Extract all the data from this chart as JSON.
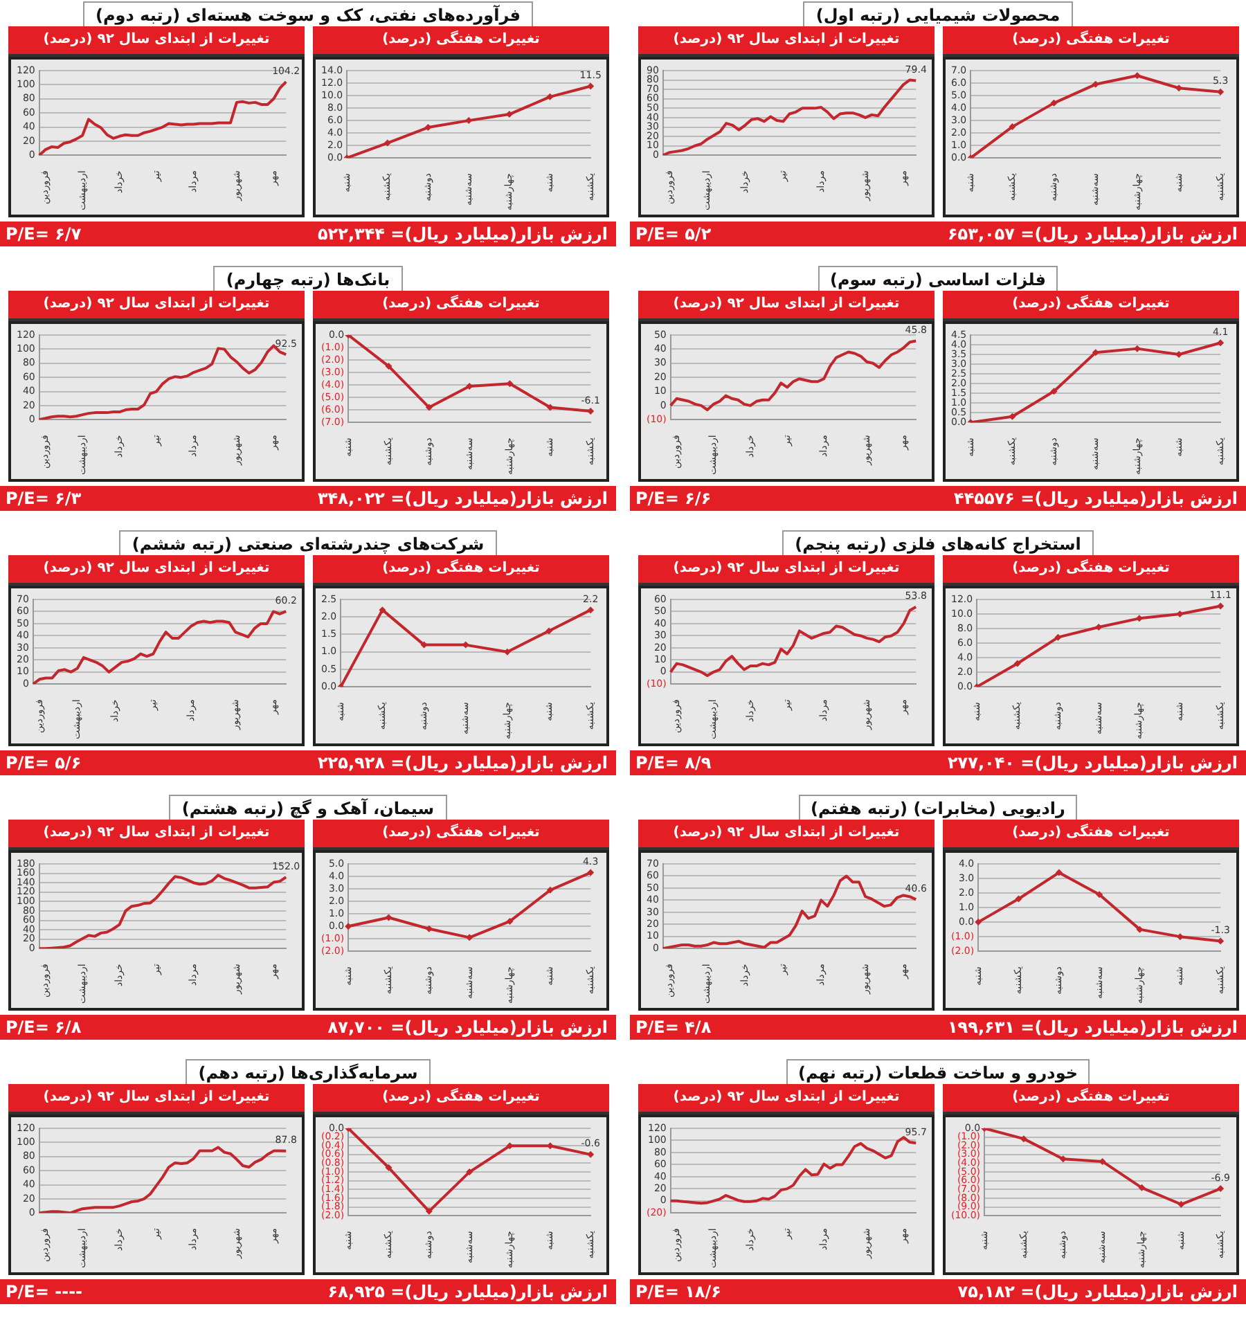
{
  "chart_data": [
    {
      "type": "line",
      "title": "تغییرات هفتگی (درصد)",
      "subtitle": "محصولات شیمیایی (رتبه اول)",
      "annotations": [
        "ارزش بازار(میلیارد ریال)= ۶۵۳,۰۵۷"
      ],
      "categories": [
        "شنبه",
        "یکشنبه",
        "دوشنبه",
        "سه‌شنبه",
        "چهارشنبه",
        "شنبه",
        "یکشنبه"
      ],
      "values": [
        0,
        2.5,
        4.4,
        5.9,
        6.6,
        5.6,
        5.3
      ],
      "value_labels": [
        null,
        null,
        null,
        null,
        null,
        null,
        "5.3"
      ],
      "color": "#c1272d",
      "marker": "diamond",
      "grid": "y",
      "ylim": [
        0,
        7
      ],
      "yticks": [
        {
          "value": 0,
          "label": "0.0"
        },
        {
          "value": 1,
          "label": "1.0"
        },
        {
          "value": 2,
          "label": "2.0"
        },
        {
          "value": 3,
          "label": "3.0"
        },
        {
          "value": 4,
          "label": "4.0"
        },
        {
          "value": 5,
          "label": "5.0"
        },
        {
          "value": 6,
          "label": "6.0"
        },
        {
          "value": 7,
          "label": "7.0"
        }
      ]
    },
    {
      "type": "line",
      "title": "تغییرات از ابتدای سال ۹۲ (درصد)",
      "annotations": [
        "P/E= ۵/۲"
      ],
      "categories": [
        null,
        "فروردین",
        null,
        null,
        null,
        null,
        null,
        "اردیبهشت",
        null,
        null,
        null,
        null,
        null,
        "خرداد",
        null,
        null,
        null,
        null,
        null,
        "تیر",
        null,
        null,
        null,
        null,
        null,
        "مرداد",
        null,
        null,
        null,
        null,
        null,
        null,
        "شهریور",
        null,
        null,
        null,
        null,
        null,
        "مهر",
        null,
        null
      ],
      "values": [
        0,
        3,
        4,
        5,
        7,
        10,
        12,
        17,
        21,
        25,
        34,
        32,
        27,
        32,
        38,
        39,
        36,
        41,
        37,
        36,
        44,
        46,
        50,
        50,
        50,
        51,
        46,
        39,
        44,
        45,
        45,
        43,
        40,
        43,
        42,
        51,
        59,
        67,
        75,
        80,
        79.4
      ],
      "value_labels": [
        null,
        null,
        null,
        null,
        null,
        null,
        null,
        null,
        null,
        null,
        null,
        null,
        null,
        null,
        null,
        null,
        null,
        null,
        null,
        null,
        null,
        null,
        null,
        null,
        null,
        null,
        null,
        null,
        null,
        null,
        null,
        null,
        null,
        null,
        null,
        null,
        null,
        null,
        null,
        null,
        "79.4"
      ],
      "color": "#c1272d",
      "grid": "y",
      "ylim": [
        0,
        90
      ],
      "yticks": [
        0,
        10,
        20,
        30,
        40,
        50,
        60,
        70,
        80,
        90
      ]
    },
    {
      "type": "line",
      "title": "تغییرات هفتگی (درصد)",
      "subtitle": "فرآورده‌های نفتی، کک و سوخت هسته‌ای (رتبه دوم)",
      "annotations": [
        "ارزش بازار(میلیارد ریال)= ۵۲۲,۳۴۴"
      ],
      "categories": [
        "شنبه",
        "یکشنبه",
        "دوشنبه",
        "سه‌شنبه",
        "چهارشنبه",
        "شنبه",
        "یکشنبه"
      ],
      "values": [
        0,
        2.4,
        4.9,
        6.0,
        7.0,
        9.8,
        11.5
      ],
      "value_labels": [
        null,
        null,
        null,
        null,
        null,
        null,
        "11.5"
      ],
      "color": "#c1272d",
      "marker": "diamond",
      "grid": "y",
      "ylim": [
        0,
        14
      ],
      "yticks": [
        {
          "value": 0,
          "label": "0.0"
        },
        {
          "value": 2,
          "label": "2.0"
        },
        {
          "value": 4,
          "label": "4.0"
        },
        {
          "value": 6,
          "label": "6.0"
        },
        {
          "value": 8,
          "label": "8.0"
        },
        {
          "value": 10,
          "label": "10.0"
        },
        {
          "value": 12,
          "label": "12.0"
        },
        {
          "value": 14,
          "label": "14.0"
        }
      ]
    },
    {
      "type": "line",
      "title": "تغییرات از ابتدای سال ۹۲ (درصد)",
      "annotations": [
        "P/E= ۶/۷"
      ],
      "categories": [
        null,
        "فروردین",
        null,
        null,
        null,
        null,
        null,
        "اردیبهشت",
        null,
        null,
        null,
        null,
        null,
        "خرداد",
        null,
        null,
        null,
        null,
        null,
        "تیر",
        null,
        null,
        null,
        null,
        null,
        "مرداد",
        null,
        null,
        null,
        null,
        null,
        null,
        "شهریور",
        null,
        null,
        null,
        null,
        null,
        "مهر",
        null,
        null
      ],
      "values": [
        0,
        8,
        12,
        11,
        17,
        19,
        23,
        28,
        51,
        44,
        39,
        29,
        24,
        27,
        29,
        28,
        28,
        32,
        34,
        37,
        40,
        45,
        44,
        43,
        44,
        44,
        45,
        45,
        45,
        46,
        46,
        46,
        75,
        76,
        74,
        75,
        72,
        72,
        80,
        95,
        104.2
      ],
      "value_labels": [
        null,
        null,
        null,
        null,
        null,
        null,
        null,
        null,
        null,
        null,
        null,
        null,
        null,
        null,
        null,
        null,
        null,
        null,
        null,
        null,
        null,
        null,
        null,
        null,
        null,
        null,
        null,
        null,
        null,
        null,
        null,
        null,
        null,
        null,
        null,
        null,
        null,
        null,
        null,
        null,
        "104.2"
      ],
      "color": "#c1272d",
      "grid": "y",
      "ylim": [
        0,
        120
      ],
      "yticks": [
        0,
        20,
        40,
        60,
        80,
        100,
        120
      ]
    },
    {
      "type": "line",
      "title": "تغییرات هفتگی (درصد)",
      "subtitle": "فلزات اساسی (رتبه سوم)",
      "annotations": [
        "ارزش بازار(میلیارد ریال)= ۴۴۵۵۷۶"
      ],
      "categories": [
        "شنبه",
        "یکشنبه",
        "دوشنبه",
        "سه‌شنبه",
        "چهارشنبه",
        "شنبه",
        "یکشنبه"
      ],
      "values": [
        0,
        0.3,
        1.6,
        3.6,
        3.8,
        3.5,
        4.1
      ],
      "value_labels": [
        null,
        null,
        null,
        null,
        null,
        null,
        "4.1"
      ],
      "color": "#c1272d",
      "marker": "diamond",
      "grid": "y",
      "ylim": [
        0,
        4.5
      ],
      "yticks": [
        {
          "value": 0,
          "label": "0.0"
        },
        {
          "value": 0.5,
          "label": "0.5"
        },
        {
          "value": 1,
          "label": "1.0"
        },
        {
          "value": 1.5,
          "label": "1.5"
        },
        {
          "value": 2,
          "label": "2.0"
        },
        {
          "value": 2.5,
          "label": "2.5"
        },
        {
          "value": 3,
          "label": "3.0"
        },
        {
          "value": 3.5,
          "label": "3.5"
        },
        {
          "value": 4,
          "label": "4.0"
        },
        {
          "value": 4.5,
          "label": "4.5"
        }
      ]
    },
    {
      "type": "line",
      "title": "تغییرات از ابتدای سال ۹۲ (درصد)",
      "annotations": [
        "P/E= ۶/۶"
      ],
      "categories": [
        null,
        "فروردین",
        null,
        null,
        null,
        null,
        null,
        "اردیبهشت",
        null,
        null,
        null,
        null,
        null,
        "خرداد",
        null,
        null,
        null,
        null,
        null,
        "تیر",
        null,
        null,
        null,
        null,
        null,
        "مرداد",
        null,
        null,
        null,
        null,
        null,
        null,
        "شهریور",
        null,
        null,
        null,
        null,
        null,
        "مهر",
        null,
        null
      ],
      "values": [
        0,
        5,
        4,
        3,
        1,
        0,
        -3,
        1,
        3,
        7,
        5,
        4,
        1,
        0,
        3,
        4,
        4,
        9,
        16,
        13,
        17,
        19,
        18,
        17,
        17,
        19,
        28,
        34,
        36,
        38,
        37,
        35,
        31,
        30,
        27,
        32,
        36,
        38,
        41,
        45,
        45.8
      ],
      "value_labels": [
        null,
        null,
        null,
        null,
        null,
        null,
        null,
        null,
        null,
        null,
        null,
        null,
        null,
        null,
        null,
        null,
        null,
        null,
        null,
        null,
        null,
        null,
        null,
        null,
        null,
        null,
        null,
        null,
        null,
        null,
        null,
        null,
        null,
        null,
        null,
        null,
        null,
        null,
        null,
        null,
        "45.8"
      ],
      "color": "#c1272d",
      "grid": "y",
      "ylim": [
        -10,
        50
      ],
      "yticks": [
        {
          "value": -10,
          "label": "(10)"
        },
        0,
        10,
        20,
        30,
        40,
        50
      ]
    },
    {
      "type": "line",
      "title": "تغییرات هفتگی (درصد)",
      "subtitle": "بانک‌ها (رتبه چهارم)",
      "annotations": [
        "ارزش بازار(میلیارد ریال)= ۳۴۸,۰۲۲"
      ],
      "categories": [
        "شنبه",
        "یکشنبه",
        "دوشنبه",
        "سه‌شنبه",
        "چهارشنبه",
        "شنبه",
        "یکشنبه"
      ],
      "values": [
        0,
        -2.5,
        -5.8,
        -4.1,
        -3.9,
        -5.8,
        -6.1
      ],
      "value_labels": [
        null,
        null,
        null,
        null,
        null,
        null,
        "-6.1"
      ],
      "color": "#c1272d",
      "marker": "diamond",
      "grid": "y",
      "ylim": [
        -7,
        0
      ],
      "yticks": [
        {
          "value": 0,
          "label": "0.0"
        },
        {
          "value": -1,
          "label": "(1.0)"
        },
        {
          "value": -2,
          "label": "(2.0)"
        },
        {
          "value": -3,
          "label": "(3.0)"
        },
        {
          "value": -4,
          "label": "(4.0)"
        },
        {
          "value": -5,
          "label": "(5.0)"
        },
        {
          "value": -6,
          "label": "(6.0)"
        },
        {
          "value": -7,
          "label": "(7.0)"
        }
      ]
    },
    {
      "type": "line",
      "title": "تغییرات از ابتدای سال ۹۲ (درصد)",
      "annotations": [
        "P/E= ۶/۳"
      ],
      "categories": [
        null,
        "فروردین",
        null,
        null,
        null,
        null,
        null,
        "اردیبهشت",
        null,
        null,
        null,
        null,
        null,
        "خرداد",
        null,
        null,
        null,
        null,
        null,
        "تیر",
        null,
        null,
        null,
        null,
        null,
        "مرداد",
        null,
        null,
        null,
        null,
        null,
        null,
        "شهریور",
        null,
        null,
        null,
        null,
        null,
        "مهر",
        null,
        null
      ],
      "values": [
        0,
        2,
        4,
        5,
        5,
        4,
        5,
        7,
        9,
        10,
        10,
        10,
        11,
        11,
        14,
        15,
        15,
        21,
        37,
        40,
        51,
        58,
        61,
        60,
        62,
        67,
        70,
        73,
        79,
        101,
        100,
        89,
        82,
        73,
        66,
        71,
        81,
        96,
        105,
        96,
        92.5
      ],
      "value_labels": [
        null,
        null,
        null,
        null,
        null,
        null,
        null,
        null,
        null,
        null,
        null,
        null,
        null,
        null,
        null,
        null,
        null,
        null,
        null,
        null,
        null,
        null,
        null,
        null,
        null,
        null,
        null,
        null,
        null,
        null,
        null,
        null,
        null,
        null,
        null,
        null,
        null,
        null,
        null,
        null,
        "92.5"
      ],
      "color": "#c1272d",
      "grid": "y",
      "ylim": [
        0,
        120
      ],
      "yticks": [
        0,
        20,
        40,
        60,
        80,
        100,
        120
      ]
    },
    {
      "type": "line",
      "title": "تغییرات هفتگی (درصد)",
      "subtitle": "استخراج کانه‌های فلزی (رتبه پنجم)",
      "annotations": [
        "ارزش بازار(میلیارد ریال)= ۲۷۷,۰۴۰"
      ],
      "categories": [
        "شنبه",
        "یکشنبه",
        "دوشنبه",
        "سه‌شنبه",
        "چهارشنبه",
        "شنبه",
        "یکشنبه"
      ],
      "values": [
        0,
        3.2,
        6.8,
        8.2,
        9.4,
        10.0,
        11.1
      ],
      "value_labels": [
        null,
        null,
        null,
        null,
        null,
        null,
        "11.1"
      ],
      "color": "#c1272d",
      "marker": "diamond",
      "grid": "y",
      "ylim": [
        0,
        12
      ],
      "yticks": [
        {
          "value": 0,
          "label": "0.0"
        },
        {
          "value": 2,
          "label": "2.0"
        },
        {
          "value": 4,
          "label": "4.0"
        },
        {
          "value": 6,
          "label": "6.0"
        },
        {
          "value": 8,
          "label": "8.0"
        },
        {
          "value": 10,
          "label": "10.0"
        },
        {
          "value": 12,
          "label": "12.0"
        }
      ]
    },
    {
      "type": "line",
      "title": "تغییرات از ابتدای سال ۹۲ (درصد)",
      "annotations": [
        "P/E= ۸/۹"
      ],
      "categories": [
        null,
        "فروردین",
        null,
        null,
        null,
        null,
        null,
        "اردیبهشت",
        null,
        null,
        null,
        null,
        null,
        "خرداد",
        null,
        null,
        null,
        null,
        null,
        "تیر",
        null,
        null,
        null,
        null,
        null,
        "مرداد",
        null,
        null,
        null,
        null,
        null,
        null,
        "شهریور",
        null,
        null,
        null,
        null,
        null,
        "مهر",
        null,
        null
      ],
      "values": [
        0,
        7,
        6,
        4,
        2,
        0,
        -3,
        0,
        2,
        9,
        13,
        7,
        2,
        5,
        5,
        7,
        6,
        8,
        19,
        15,
        22,
        34,
        31,
        28,
        30,
        32,
        33,
        38,
        37,
        34,
        31,
        30,
        28,
        27,
        25,
        29,
        30,
        33,
        40,
        51,
        53.8
      ],
      "value_labels": [
        null,
        null,
        null,
        null,
        null,
        null,
        null,
        null,
        null,
        null,
        null,
        null,
        null,
        null,
        null,
        null,
        null,
        null,
        null,
        null,
        null,
        null,
        null,
        null,
        null,
        null,
        null,
        null,
        null,
        null,
        null,
        null,
        null,
        null,
        null,
        null,
        null,
        null,
        null,
        null,
        "53.8"
      ],
      "color": "#c1272d",
      "grid": "y",
      "ylim": [
        -10,
        60
      ],
      "yticks": [
        {
          "value": -10,
          "label": "(10)"
        },
        0,
        10,
        20,
        30,
        40,
        50,
        60
      ]
    },
    {
      "type": "line",
      "title": "تغییرات هفتگی (درصد)",
      "subtitle": "شرکت‌های چندرشته‌ای صنعتی (رتبه ششم)",
      "annotations": [
        "ارزش بازار(میلیارد ریال)= ۲۲۵,۹۲۸"
      ],
      "categories": [
        "شنبه",
        "یکشنبه",
        "دوشنبه",
        "سه‌شنبه",
        "چهارشنبه",
        "شنبه",
        "یکشنبه"
      ],
      "values": [
        0,
        2.2,
        1.2,
        1.2,
        1.0,
        1.6,
        2.2
      ],
      "value_labels": [
        null,
        null,
        null,
        null,
        null,
        null,
        "2.2"
      ],
      "color": "#c1272d",
      "marker": "diamond",
      "grid": "y",
      "ylim": [
        0,
        2.5
      ],
      "yticks": [
        {
          "value": 0,
          "label": "0.0"
        },
        {
          "value": 0.5,
          "label": "0.5"
        },
        {
          "value": 1,
          "label": "1.0"
        },
        {
          "value": 1.5,
          "label": "1.5"
        },
        {
          "value": 2,
          "label": "2.0"
        },
        {
          "value": 2.5,
          "label": "2.5"
        }
      ]
    },
    {
      "type": "line",
      "title": "تغییرات از ابتدای سال ۹۲ (درصد)",
      "annotations": [
        "P/E= ۵/۶"
      ],
      "categories": [
        null,
        "فروردین",
        null,
        null,
        null,
        null,
        null,
        "اردیبهشت",
        null,
        null,
        null,
        null,
        null,
        "خرداد",
        null,
        null,
        null,
        null,
        null,
        "تیر",
        null,
        null,
        null,
        null,
        null,
        "مرداد",
        null,
        null,
        null,
        null,
        null,
        null,
        "شهریور",
        null,
        null,
        null,
        null,
        null,
        "مهر",
        null,
        null
      ],
      "values": [
        0,
        4,
        5,
        5,
        11,
        12,
        10,
        13,
        22,
        20,
        18,
        15,
        10,
        14,
        18,
        19,
        21,
        25,
        23,
        25,
        35,
        43,
        38,
        38,
        43,
        48,
        51,
        52,
        51,
        52,
        52,
        51,
        43,
        41,
        39,
        46,
        50,
        50,
        60,
        58,
        60.2
      ],
      "value_labels": [
        null,
        null,
        null,
        null,
        null,
        null,
        null,
        null,
        null,
        null,
        null,
        null,
        null,
        null,
        null,
        null,
        null,
        null,
        null,
        null,
        null,
        null,
        null,
        null,
        null,
        null,
        null,
        null,
        null,
        null,
        null,
        null,
        null,
        null,
        null,
        null,
        null,
        null,
        null,
        null,
        "60.2"
      ],
      "color": "#c1272d",
      "grid": "y",
      "ylim": [
        0,
        70
      ],
      "yticks": [
        0,
        10,
        20,
        30,
        40,
        50,
        60,
        70
      ]
    },
    {
      "type": "line",
      "title": "تغییرات هفتگی (درصد)",
      "subtitle": "رادیویی (مخابرات) (رتبه هفتم)",
      "annotations": [
        "ارزش بازار(میلیارد ریال)= ۱۹۹,۶۳۱"
      ],
      "categories": [
        "شنبه",
        "یکشنبه",
        "دوشنبه",
        "سه‌شنبه",
        "چهارشنبه",
        "شنبه",
        "یکشنبه"
      ],
      "values": [
        0,
        1.6,
        3.4,
        1.9,
        -0.5,
        -1.0,
        -1.3
      ],
      "value_labels": [
        null,
        null,
        null,
        null,
        null,
        null,
        "-1.3"
      ],
      "color": "#c1272d",
      "marker": "diamond",
      "grid": "y",
      "ylim": [
        -2,
        4
      ],
      "yticks": [
        {
          "value": -2,
          "label": "(2.0)"
        },
        {
          "value": -1,
          "label": "(1.0)"
        },
        {
          "value": 0,
          "label": "0.0"
        },
        {
          "value": 1,
          "label": "1.0"
        },
        {
          "value": 2,
          "label": "2.0"
        },
        {
          "value": 3,
          "label": "3.0"
        },
        {
          "value": 4,
          "label": "4.0"
        }
      ]
    },
    {
      "type": "line",
      "title": "تغییرات از ابتدای سال ۹۲ (درصد)",
      "annotations": [
        "P/E= ۴/۸"
      ],
      "categories": [
        null,
        "فروردین",
        null,
        null,
        null,
        null,
        null,
        "اردیبهشت",
        null,
        null,
        null,
        null,
        null,
        "خرداد",
        null,
        null,
        null,
        null,
        null,
        "تیر",
        null,
        null,
        null,
        null,
        null,
        "مرداد",
        null,
        null,
        null,
        null,
        null,
        null,
        "شهریور",
        null,
        null,
        null,
        null,
        null,
        "مهر",
        null,
        null
      ],
      "values": [
        0,
        1,
        2,
        3,
        3,
        2,
        2,
        3,
        5,
        4,
        4,
        5,
        6,
        4,
        3,
        2,
        1,
        5,
        5,
        8,
        11,
        19,
        31,
        25,
        27,
        40,
        35,
        44,
        56,
        60,
        55,
        55,
        43,
        41,
        38,
        35,
        36,
        42,
        44,
        43,
        40.6
      ],
      "value_labels": [
        null,
        null,
        null,
        null,
        null,
        null,
        null,
        null,
        null,
        null,
        null,
        null,
        null,
        null,
        null,
        null,
        null,
        null,
        null,
        null,
        null,
        null,
        null,
        null,
        null,
        null,
        null,
        null,
        null,
        null,
        null,
        null,
        null,
        null,
        null,
        null,
        null,
        null,
        null,
        null,
        "40.6"
      ],
      "color": "#c1272d",
      "grid": "y",
      "ylim": [
        0,
        70
      ],
      "yticks": [
        0,
        10,
        20,
        30,
        40,
        50,
        60,
        70
      ]
    },
    {
      "type": "line",
      "title": "تغییرات هفتگی (درصد)",
      "subtitle": "سیمان، آهک و گچ (رتبه هشتم)",
      "annotations": [
        "ارزش بازار(میلیارد ریال)= ۸۷,۷۰۰"
      ],
      "categories": [
        "شنبه",
        "یکشنبه",
        "دوشنبه",
        "سه‌شنبه",
        "چهارشنبه",
        "شنبه",
        "یکشنبه"
      ],
      "values": [
        0,
        0.7,
        -0.2,
        -0.9,
        0.4,
        2.9,
        4.3
      ],
      "value_labels": [
        null,
        null,
        null,
        null,
        null,
        null,
        "4.3"
      ],
      "color": "#c1272d",
      "marker": "diamond",
      "grid": "y",
      "ylim": [
        -2,
        5
      ],
      "yticks": [
        {
          "value": -2,
          "label": "(2.0)"
        },
        {
          "value": -1,
          "label": "(1.0)"
        },
        {
          "value": 0,
          "label": "0.0"
        },
        {
          "value": 1,
          "label": "1.0"
        },
        {
          "value": 2,
          "label": "2.0"
        },
        {
          "value": 3,
          "label": "3.0"
        },
        {
          "value": 4,
          "label": "4.0"
        },
        {
          "value": 5,
          "label": "5.0"
        }
      ]
    },
    {
      "type": "line",
      "title": "تغییرات از ابتدای سال ۹۲ (درصد)",
      "annotations": [
        "P/E= ۶/۸"
      ],
      "categories": [
        null,
        "فروردین",
        null,
        null,
        null,
        null,
        null,
        "اردیبهشت",
        null,
        null,
        null,
        null,
        null,
        "خرداد",
        null,
        null,
        null,
        null,
        null,
        "تیر",
        null,
        null,
        null,
        null,
        null,
        "مرداد",
        null,
        null,
        null,
        null,
        null,
        null,
        "شهریور",
        null,
        null,
        null,
        null,
        null,
        "مهر",
        null,
        null
      ],
      "values": [
        0,
        0,
        1,
        2,
        3,
        6,
        14,
        21,
        28,
        26,
        33,
        35,
        42,
        51,
        80,
        90,
        92,
        96,
        97,
        108,
        123,
        139,
        153,
        151,
        146,
        140,
        137,
        138,
        144,
        156,
        149,
        145,
        140,
        135,
        129,
        129,
        130,
        131,
        141,
        143,
        152
      ],
      "value_labels": [
        null,
        null,
        null,
        null,
        null,
        null,
        null,
        null,
        null,
        null,
        null,
        null,
        null,
        null,
        null,
        null,
        null,
        null,
        null,
        null,
        null,
        null,
        null,
        null,
        null,
        null,
        null,
        null,
        null,
        null,
        null,
        null,
        null,
        null,
        null,
        null,
        null,
        null,
        null,
        null,
        "152.0"
      ],
      "color": "#c1272d",
      "grid": "y",
      "ylim": [
        0,
        180
      ],
      "yticks": [
        0,
        20,
        40,
        60,
        80,
        100,
        120,
        140,
        160,
        180
      ]
    },
    {
      "type": "line",
      "title": "تغییرات هفتگی (درصد)",
      "subtitle": "خودرو و ساخت قطعات (رتبه نهم)",
      "annotations": [
        "ارزش بازار(میلیارد ریال)= ۷۵,۱۸۲"
      ],
      "categories": [
        "شنبه",
        "یکشنبه",
        "دوشنبه",
        "سه‌شنبه",
        "چهارشنبه",
        "شنبه",
        "یکشنبه"
      ],
      "values": [
        0,
        -1.2,
        -3.5,
        -3.8,
        -6.8,
        -8.7,
        -6.9
      ],
      "value_labels": [
        null,
        null,
        null,
        null,
        null,
        null,
        "-6.9"
      ],
      "color": "#c1272d",
      "marker": "diamond",
      "grid": "y",
      "ylim": [
        -10,
        0
      ],
      "yticks": [
        {
          "value": 0,
          "label": "0.0"
        },
        {
          "value": -1,
          "label": "(1.0)"
        },
        {
          "value": -2,
          "label": "(2.0)"
        },
        {
          "value": -3,
          "label": "(3.0)"
        },
        {
          "value": -4,
          "label": "(4.0)"
        },
        {
          "value": -5,
          "label": "(5.0)"
        },
        {
          "value": -6,
          "label": "(6.0)"
        },
        {
          "value": -7,
          "label": "(7.0)"
        },
        {
          "value": -8,
          "label": "(8.0)"
        },
        {
          "value": -9,
          "label": "(9.0)"
        },
        {
          "value": -10,
          "label": "(10.0)"
        }
      ]
    },
    {
      "type": "line",
      "title": "تغییرات از ابتدای سال ۹۲ (درصد)",
      "annotations": [
        "P/E= ۱۸/۶"
      ],
      "categories": [
        null,
        "فروردین",
        null,
        null,
        null,
        null,
        null,
        "اردیبهشت",
        null,
        null,
        null,
        null,
        null,
        "خرداد",
        null,
        null,
        null,
        null,
        null,
        "تیر",
        null,
        null,
        null,
        null,
        null,
        "مرداد",
        null,
        null,
        null,
        null,
        null,
        null,
        "شهریور",
        null,
        null,
        null,
        null,
        null,
        "مهر",
        null,
        null
      ],
      "values": [
        0,
        0,
        -1,
        -2,
        -3,
        -4,
        -3,
        0,
        3,
        9,
        5,
        1,
        -1,
        -1,
        0,
        4,
        3,
        8,
        18,
        20,
        26,
        41,
        52,
        43,
        44,
        61,
        54,
        60,
        60,
        74,
        90,
        95,
        87,
        83,
        77,
        71,
        75,
        98,
        105,
        97,
        95.7
      ],
      "value_labels": [
        null,
        null,
        null,
        null,
        null,
        null,
        null,
        null,
        null,
        null,
        null,
        null,
        null,
        null,
        null,
        null,
        null,
        null,
        null,
        null,
        null,
        null,
        null,
        null,
        null,
        null,
        null,
        null,
        null,
        null,
        null,
        null,
        null,
        null,
        null,
        null,
        null,
        null,
        null,
        null,
        "95.7"
      ],
      "color": "#c1272d",
      "grid": "y",
      "ylim": [
        -20,
        120
      ],
      "yticks": [
        {
          "value": -20,
          "label": "(20)"
        },
        0,
        20,
        40,
        60,
        80,
        100,
        120
      ]
    },
    {
      "type": "line",
      "title": "تغییرات هفتگی (درصد)",
      "subtitle": "سرمایه‌گذاری‌ها (رتبه دهم)",
      "annotations": [
        "ارزش بازار(میلیارد ریال)= ۶۸,۹۲۵"
      ],
      "categories": [
        "شنبه",
        "یکشنبه",
        "دوشنبه",
        "سه‌شنبه",
        "چهارشنبه",
        "شنبه",
        "یکشنبه"
      ],
      "values": [
        0,
        -0.9,
        -1.9,
        -1.0,
        -0.4,
        -0.4,
        -0.6
      ],
      "value_labels": [
        null,
        null,
        null,
        null,
        null,
        null,
        "-0.6"
      ],
      "color": "#c1272d",
      "marker": "diamond",
      "grid": "y",
      "ylim": [
        -2,
        0
      ],
      "yticks": [
        {
          "value": 0,
          "label": "0.0"
        },
        {
          "value": -0.2,
          "label": "(0.2)"
        },
        {
          "value": -0.4,
          "label": "(0.4)"
        },
        {
          "value": -0.6,
          "label": "(0.6)"
        },
        {
          "value": -0.8,
          "label": "(0.8)"
        },
        {
          "value": -1,
          "label": "(1.0)"
        },
        {
          "value": -1.2,
          "label": "(1.2)"
        },
        {
          "value": -1.4,
          "label": "(1.4)"
        },
        {
          "value": -1.6,
          "label": "(1.6)"
        },
        {
          "value": -1.8,
          "label": "(1.8)"
        },
        {
          "value": -2,
          "label": "(2.0)"
        }
      ]
    },
    {
      "type": "line",
      "title": "تغییرات از ابتدای سال ۹۲ (درصد)",
      "annotations": [
        "P/E= ----"
      ],
      "categories": [
        null,
        "فروردین",
        null,
        null,
        null,
        null,
        null,
        "اردیبهشت",
        null,
        null,
        null,
        null,
        null,
        "خرداد",
        null,
        null,
        null,
        null,
        null,
        "تیر",
        null,
        null,
        null,
        null,
        null,
        "مرداد",
        null,
        null,
        null,
        null,
        null,
        null,
        "شهریور",
        null,
        null,
        null,
        null,
        null,
        "مهر",
        null,
        null
      ],
      "values": [
        0,
        1,
        2,
        2,
        1,
        0,
        3,
        6,
        7,
        8,
        8,
        8,
        8,
        10,
        13,
        16,
        17,
        20,
        27,
        39,
        51,
        65,
        71,
        70,
        71,
        77,
        88,
        88,
        88,
        93,
        86,
        84,
        76,
        67,
        65,
        72,
        76,
        83,
        88,
        88,
        87.8
      ],
      "value_labels": [
        null,
        null,
        null,
        null,
        null,
        null,
        null,
        null,
        null,
        null,
        null,
        null,
        null,
        null,
        null,
        null,
        null,
        null,
        null,
        null,
        null,
        null,
        null,
        null,
        null,
        null,
        null,
        null,
        null,
        null,
        null,
        null,
        null,
        null,
        null,
        null,
        null,
        null,
        null,
        null,
        "87.8"
      ],
      "color": "#c1272d",
      "grid": "y",
      "ylim": [
        0,
        120
      ],
      "yticks": [
        0,
        20,
        40,
        60,
        80,
        100,
        120
      ]
    }
  ]
}
